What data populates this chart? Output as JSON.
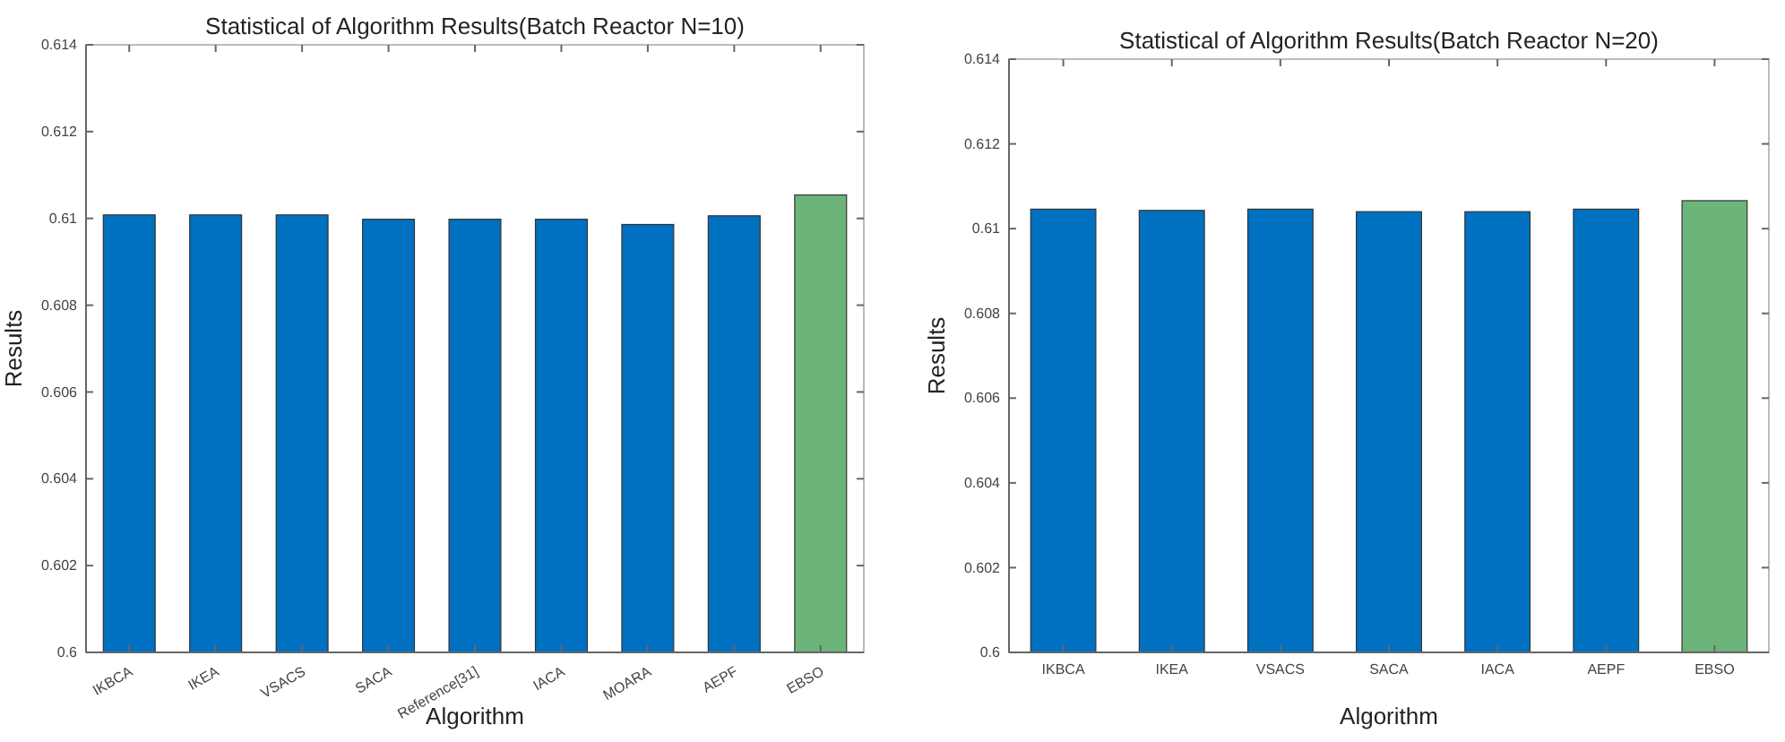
{
  "chart_data": [
    {
      "type": "bar",
      "title": "Statistical of Algorithm Results(Batch Reactor N=10)",
      "xlabel": "Algorithm",
      "ylabel": "Results",
      "categories": [
        "IKBCA",
        "IKEA",
        "VSACS",
        "SACA",
        "Reference[31]",
        "IACA",
        "MOARA",
        "AEPF",
        "EBSO"
      ],
      "values": [
        0.61008,
        0.61008,
        0.61008,
        0.60998,
        0.60998,
        0.60998,
        0.60986,
        0.61006,
        0.61054
      ],
      "colors": [
        "#0070c0",
        "#0070c0",
        "#0070c0",
        "#0070c0",
        "#0070c0",
        "#0070c0",
        "#0070c0",
        "#0070c0",
        "#6cb47a"
      ],
      "ylim": [
        0.6,
        0.614
      ],
      "yticks": [
        0.6,
        0.602,
        0.604,
        0.606,
        0.608,
        0.61,
        0.612,
        0.614
      ],
      "grid": false
    },
    {
      "type": "bar",
      "title": "Statistical of Algorithm Results(Batch Reactor N=20)",
      "xlabel": "Algorithm",
      "ylabel": "Results",
      "categories": [
        "IKBCA",
        "IKEA",
        "VSACS",
        "SACA",
        "IACA",
        "AEPF",
        "EBSO"
      ],
      "values": [
        0.61046,
        0.61043,
        0.61046,
        0.6104,
        0.6104,
        0.61046,
        0.61066
      ],
      "colors": [
        "#0070c0",
        "#0070c0",
        "#0070c0",
        "#0070c0",
        "#0070c0",
        "#0070c0",
        "#6cb47a"
      ],
      "ylim": [
        0.6,
        0.614
      ],
      "yticks": [
        0.6,
        0.602,
        0.604,
        0.606,
        0.608,
        0.61,
        0.612,
        0.614
      ],
      "grid": false
    }
  ]
}
